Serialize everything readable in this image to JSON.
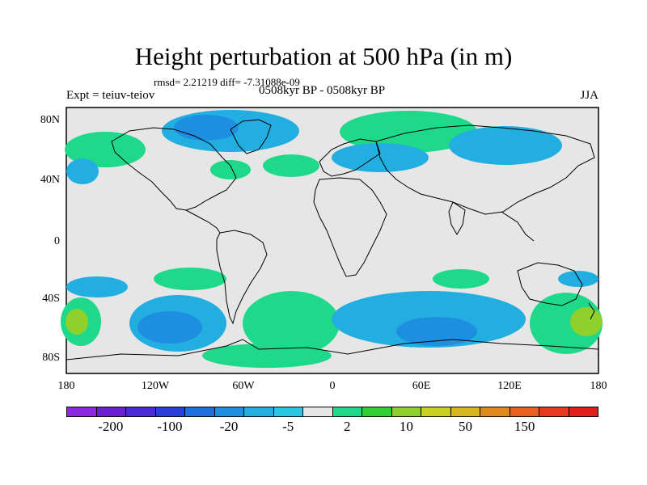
{
  "title": "Height perturbation at 500 hPa (in m)",
  "subtitle": "rmsd= 2.21219 diff= -7.31088e-09",
  "expt": "Expt = teiuv-teiov",
  "period": "0508kyr BP - 0508kyr BP",
  "season": "JJA",
  "map": {
    "lat_ticks": [
      "80N",
      "40N",
      "0",
      "40S",
      "80S"
    ],
    "lon_ticks": [
      "180",
      "120W",
      "60W",
      "0",
      "60E",
      "120E",
      "180"
    ]
  },
  "colorbar": {
    "colors": [
      "#8a2be2",
      "#6a1fd0",
      "#4b2ad8",
      "#2a3fd8",
      "#1e6fe0",
      "#1e8fe0",
      "#22aee0",
      "#28c8e0",
      "#e6e6e6",
      "#1fd98a",
      "#2fd02f",
      "#8fd02a",
      "#c8d020",
      "#d8b81e",
      "#e08a1e",
      "#e8601e",
      "#e83a1e",
      "#e01e1e"
    ],
    "labels": [
      "-200",
      "-100",
      "-20",
      "-5",
      "2",
      "10",
      "50",
      "150"
    ]
  },
  "colors": {
    "land_ocean_background": "#e6e6e6",
    "negative_fill": "#22aee0",
    "positive_fill": "#1fd98a"
  }
}
